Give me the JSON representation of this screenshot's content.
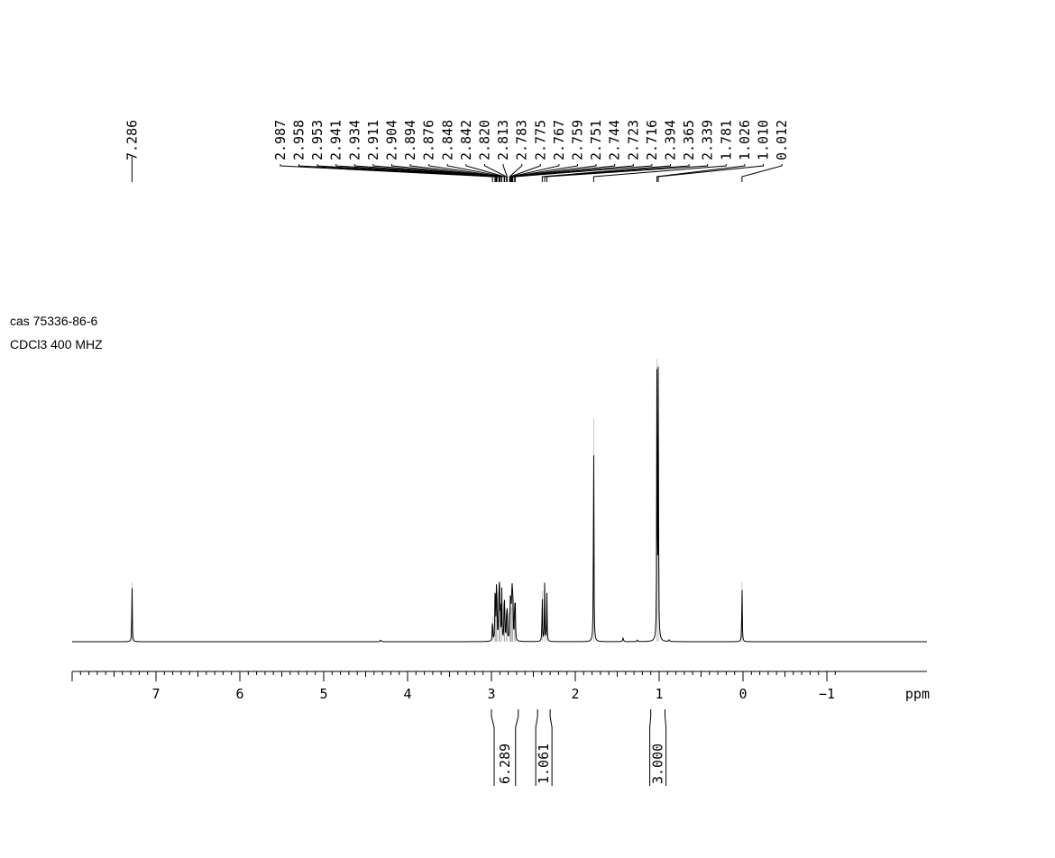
{
  "sample": {
    "name": "cas 75336-86-6",
    "solvent_frequency": "CDCl3 400 MHZ"
  },
  "chart_data": {
    "type": "line",
    "title": "",
    "xlabel": "ppm",
    "ylabel": "",
    "xlim": [
      8.0,
      -1.2
    ],
    "x_reversed": true,
    "grid": false,
    "x_ticks": [
      {
        "value": 7,
        "label": "7"
      },
      {
        "value": 6,
        "label": "6"
      },
      {
        "value": 5,
        "label": "5"
      },
      {
        "value": 4,
        "label": "4"
      },
      {
        "value": 3,
        "label": "3"
      },
      {
        "value": 2,
        "label": "2"
      },
      {
        "value": 1,
        "label": "1"
      },
      {
        "value": 0,
        "label": "0"
      },
      {
        "value": -1,
        "label": "−1"
      }
    ],
    "peaks": [
      {
        "ppm": 7.286,
        "label": "7.286",
        "intensity": 0.21
      },
      {
        "ppm": 2.987,
        "label": "2.987",
        "intensity": 0.09
      },
      {
        "ppm": 2.958,
        "label": "2.958",
        "intensity": 0.12
      },
      {
        "ppm": 2.953,
        "label": "2.953",
        "intensity": 0.13
      },
      {
        "ppm": 2.941,
        "label": "2.941",
        "intensity": 0.16
      },
      {
        "ppm": 2.934,
        "label": "2.934",
        "intensity": 0.14
      },
      {
        "ppm": 2.911,
        "label": "2.911",
        "intensity": 0.2
      },
      {
        "ppm": 2.904,
        "label": "2.904",
        "intensity": 0.17
      },
      {
        "ppm": 2.894,
        "label": "2.894",
        "intensity": 0.13
      },
      {
        "ppm": 2.876,
        "label": "2.876",
        "intensity": 0.18
      },
      {
        "ppm": 2.848,
        "label": "2.848",
        "intensity": 0.12
      },
      {
        "ppm": 2.842,
        "label": "2.842",
        "intensity": 0.13
      },
      {
        "ppm": 2.82,
        "label": "2.820",
        "intensity": 0.1
      },
      {
        "ppm": 2.813,
        "label": "2.813",
        "intensity": 0.11
      },
      {
        "ppm": 2.783,
        "label": "2.783",
        "intensity": 0.1
      },
      {
        "ppm": 2.775,
        "label": "2.775",
        "intensity": 0.12
      },
      {
        "ppm": 2.767,
        "label": "2.767",
        "intensity": 0.14
      },
      {
        "ppm": 2.759,
        "label": "2.759",
        "intensity": 0.12
      },
      {
        "ppm": 2.751,
        "label": "2.751",
        "intensity": 0.19
      },
      {
        "ppm": 2.744,
        "label": "2.744",
        "intensity": 0.16
      },
      {
        "ppm": 2.723,
        "label": "2.723",
        "intensity": 0.14
      },
      {
        "ppm": 2.716,
        "label": "2.716",
        "intensity": 0.12
      },
      {
        "ppm": 2.394,
        "label": "2.394",
        "intensity": 0.18
      },
      {
        "ppm": 2.365,
        "label": "2.365",
        "intensity": 0.21
      },
      {
        "ppm": 2.339,
        "label": "2.339",
        "intensity": 0.17
      },
      {
        "ppm": 1.781,
        "label": "1.781",
        "intensity": 0.79
      },
      {
        "ppm": 1.026,
        "label": "1.026",
        "intensity": 1.0
      },
      {
        "ppm": 1.01,
        "label": "1.010",
        "intensity": 0.98
      },
      {
        "ppm": 0.012,
        "label": "0.012",
        "intensity": 0.21
      }
    ],
    "minor_peaks": [
      {
        "ppm": 4.32,
        "intensity": 0.006
      },
      {
        "ppm": 1.43,
        "intensity": 0.012
      },
      {
        "ppm": 1.26,
        "intensity": 0.006
      },
      {
        "ppm": 0.88,
        "intensity": 0.006
      }
    ],
    "integrals": [
      {
        "from": 3.0,
        "to": 2.68,
        "value": "6.289"
      },
      {
        "from": 2.45,
        "to": 2.3,
        "value": "1.061"
      },
      {
        "from": 1.1,
        "to": 0.93,
        "value": "3.000"
      }
    ]
  }
}
